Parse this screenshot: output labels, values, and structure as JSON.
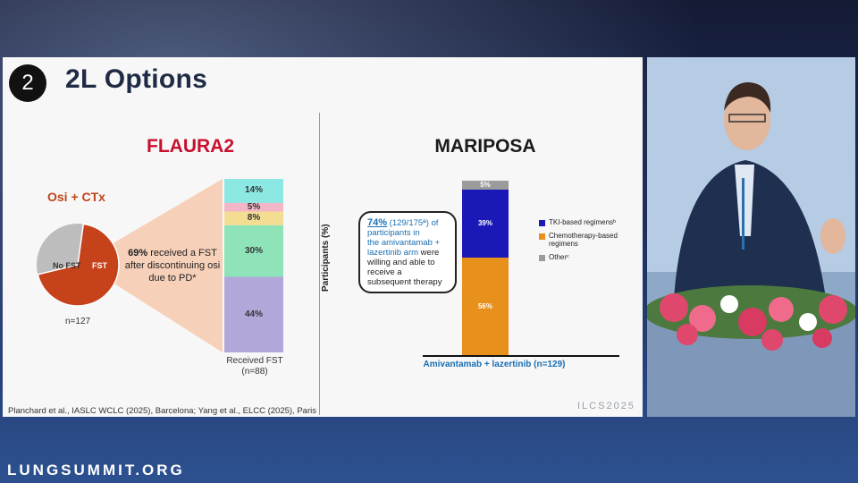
{
  "slide": {
    "number": "2",
    "title": "2L Options",
    "left_title": "FLAURA2",
    "right_title": "MARIPOSA",
    "citation": "Planchard et al., IASLC WCLC (2025), Barcelona; Yang et al., ELCC (2025), Paris",
    "watermark": "ILCS2025"
  },
  "flaura": {
    "arm": "Osi + CTx",
    "pie_labels": {
      "no_fst": "No FST",
      "fst": "FST"
    },
    "fst_share_pct": 69,
    "statement_pct": "69%",
    "statement_rest": "received a FST after discontinuing osi due to PD*",
    "n": "n=127",
    "bar_caption": "Received FST (n=88)",
    "segments": [
      {
        "label": "14%",
        "value": 14,
        "color": "#8ce8e3"
      },
      {
        "label": "5%",
        "value": 5,
        "color": "#f3b6c8"
      },
      {
        "label": "8%",
        "value": 8,
        "color": "#f3dd93"
      },
      {
        "label": "30%",
        "value": 30,
        "color": "#8fe3b9"
      },
      {
        "label": "44%",
        "value": 44,
        "color": "#b3a7da"
      }
    ],
    "colors": {
      "fst": "#c5421b",
      "no_fst": "#bdbdbd"
    }
  },
  "mariposa": {
    "ylabel": "Participants (%)",
    "xlabel": "Amivantamab + lazertinib (n=129)",
    "callout": {
      "pct": "74%",
      "count": "(129/175ª) of",
      "line2": "participants in",
      "line3": "the amivantamab +",
      "line4": "lazertinib arm",
      "rest": "were willing and able to receive a subsequent therapy"
    },
    "segments": [
      {
        "label": "5%",
        "value": 5,
        "color": "#9b9b9b"
      },
      {
        "label": "39%",
        "value": 39,
        "color": "#1a19b8"
      },
      {
        "label": "56%",
        "value": 56,
        "color": "#e8901c"
      }
    ],
    "legend": [
      {
        "label": "TKI-based regimensᵇ",
        "color": "#1a19b8"
      },
      {
        "label": "Chemotherapy-based regimens",
        "color": "#e8901c"
      },
      {
        "label": "Otherᶜ",
        "color": "#9b9b9b"
      }
    ]
  },
  "footer": "LUNGSUMMIT.ORG"
}
